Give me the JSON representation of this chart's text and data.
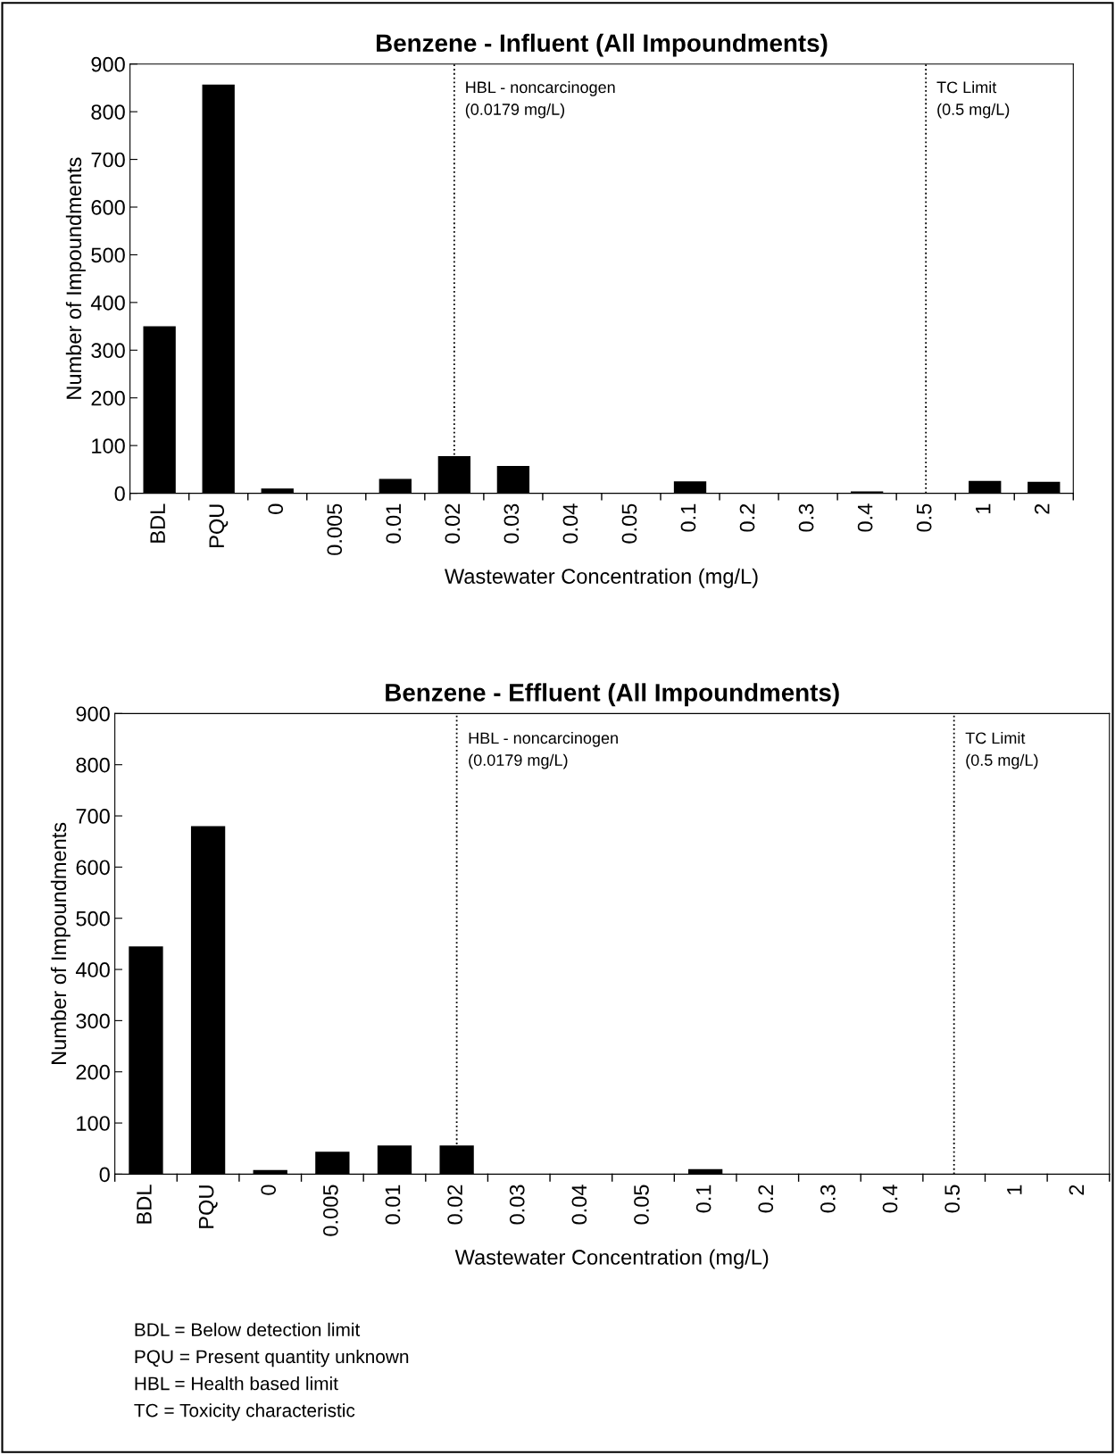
{
  "chart_data": [
    {
      "type": "bar",
      "title": "Benzene - Influent (All Impoundments)",
      "xlabel": "Wastewater Concentration (mg/L)",
      "ylabel": "Number of Impoundments",
      "categories": [
        "BDL",
        "PQU",
        "0",
        "0.005",
        "0.01",
        "0.02",
        "0.03",
        "0.04",
        "0.05",
        "0.1",
        "0.2",
        "0.3",
        "0.4",
        "0.5",
        "1",
        "2"
      ],
      "values": [
        350,
        857,
        10,
        0,
        30,
        78,
        57,
        0,
        0,
        25,
        0,
        0,
        4,
        0,
        26,
        24
      ],
      "color": "#000000",
      "ylim": [
        0,
        900
      ],
      "yticks": [
        0,
        100,
        200,
        300,
        400,
        500,
        600,
        700,
        800,
        900
      ],
      "grid": false,
      "ref_lines": [
        {
          "axis": "x",
          "value": "0.02",
          "label": "HBL - noncarcinogen\n(0.0179 mg/L)",
          "color": "#000000",
          "line_style": "dotted"
        },
        {
          "axis": "x",
          "value": "0.5",
          "label": "TC Limit\n(0.5 mg/L)",
          "color": "#000000",
          "line_style": "dotted"
        }
      ]
    },
    {
      "type": "bar",
      "title": "Benzene - Effluent (All Impoundments)",
      "xlabel": "Wastewater Concentration (mg/L)",
      "ylabel": "Number of Impoundments",
      "categories": [
        "BDL",
        "PQU",
        "0",
        "0.005",
        "0.01",
        "0.02",
        "0.03",
        "0.04",
        "0.05",
        "0.1",
        "0.2",
        "0.3",
        "0.4",
        "0.5",
        "1",
        "2"
      ],
      "values": [
        445,
        680,
        8,
        44,
        56,
        56,
        0,
        0,
        0,
        10,
        0,
        0,
        0,
        0,
        0,
        0
      ],
      "color": "#000000",
      "ylim": [
        0,
        900
      ],
      "yticks": [
        0,
        100,
        200,
        300,
        400,
        500,
        600,
        700,
        800,
        900
      ],
      "grid": false,
      "ref_lines": [
        {
          "axis": "x",
          "value": "0.02",
          "label": "HBL - noncarcinogen\n(0.0179 mg/L)",
          "color": "#000000",
          "line_style": "dotted"
        },
        {
          "axis": "x",
          "value": "0.5",
          "label": "TC Limit\n(0.5 mg/L)",
          "color": "#000000",
          "line_style": "dotted"
        }
      ],
      "annotations": [
        "BDL = Below detection limit",
        "PQU = Present quantity unknown",
        "HBL = Health based limit",
        "TC = Toxicity characteristic"
      ]
    }
  ]
}
